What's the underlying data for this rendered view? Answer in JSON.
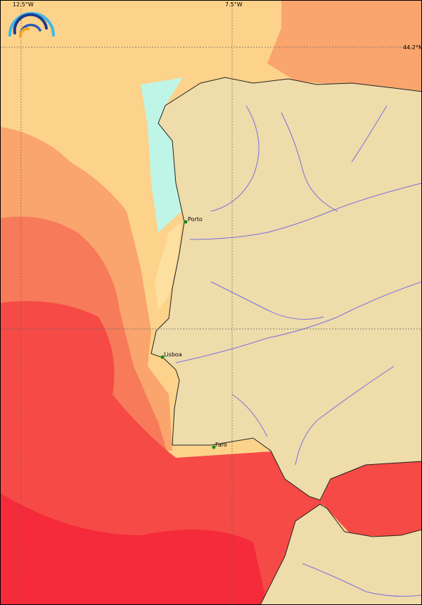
{
  "map": {
    "grid_labels": {
      "lon_left": "12.5°W",
      "lon_right": "7.5°W",
      "lat_top": "44.2°N"
    },
    "cities": [
      {
        "name": "Porto"
      },
      {
        "name": "Lisboa"
      },
      {
        "name": "Faro"
      }
    ],
    "colors": {
      "land": "#eedcaa",
      "river": "#7b6fe0",
      "ocean_cool": "#bff5e6",
      "ocean_pale": "#fde0a0",
      "ocean_light": "#fdd28a",
      "ocean_mid": "#f9a56d",
      "ocean_warm": "#f77a5a",
      "ocean_hot": "#f54a45",
      "ocean_hottest": "#f52a3a",
      "city_marker": "#1a8a1a"
    },
    "logo": "rainbow-arcs-logo"
  }
}
